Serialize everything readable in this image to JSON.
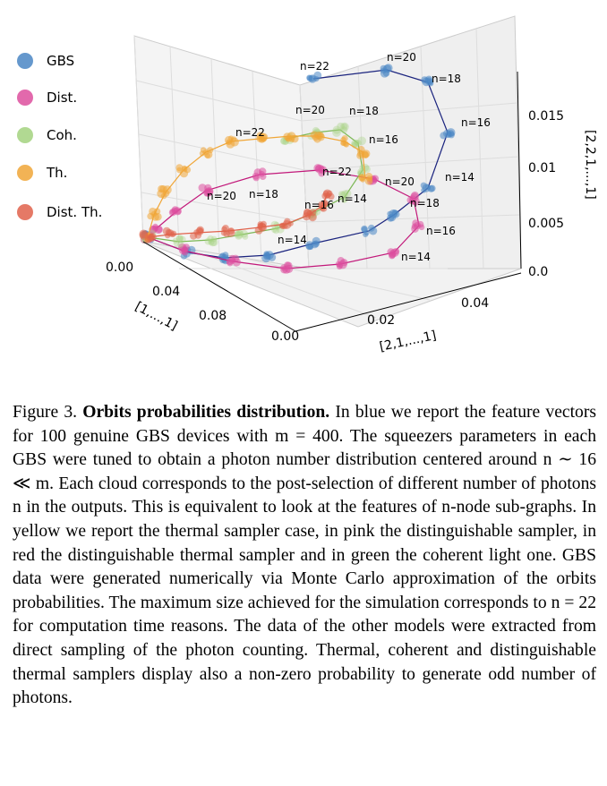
{
  "chart_data": {
    "type": "scatter",
    "title": "",
    "axes": {
      "x": {
        "label": "[1,...,1]",
        "ticks": [
          "0.00",
          "0.04",
          "0.08"
        ]
      },
      "y": {
        "label": "[2,1,...,1]",
        "ticks": [
          "0.00",
          "0.02",
          "0.04"
        ]
      },
      "z": {
        "label": "[2,2,1,...,1]",
        "ticks": [
          "0.0",
          "0.005",
          "0.01",
          "0.015"
        ]
      }
    },
    "legend": {
      "placement": "left",
      "entries": [
        {
          "name": "GBS",
          "color": "#4a86c4"
        },
        {
          "name": "Dist.",
          "color": "#dd4f9e"
        },
        {
          "name": "Coh.",
          "color": "#a3d27f"
        },
        {
          "name": "Th.",
          "color": "#f0a637"
        },
        {
          "name": "Dist. Th.",
          "color": "#e0624b"
        }
      ]
    },
    "series": [
      {
        "name": "GBS",
        "line_color": "#1a237e",
        "point_labels": [
          "n=22",
          "n=20",
          "n=18",
          "n=16",
          "n=14"
        ]
      },
      {
        "name": "Dist.",
        "line_color": "#c2187a",
        "point_labels": [
          "n=22",
          "n=20",
          "n=18",
          "n=16",
          "n=14"
        ]
      },
      {
        "name": "Coh.",
        "line_color": "#7cb855",
        "point_labels": [
          "n=20",
          "n=18",
          "n=16",
          "n=14"
        ]
      },
      {
        "name": "Th.",
        "line_color": "#f0a637",
        "point_labels": [
          "n=22",
          "n=20",
          "n=18",
          "n=16",
          "n=14"
        ]
      },
      {
        "name": "Dist. Th.",
        "line_color": "#e0624b",
        "point_labels": []
      }
    ]
  },
  "caption": {
    "label": "Figure 3.",
    "title": "Orbits probabilities distribution.",
    "body": "In blue we report the feature vectors for 100 genuine GBS devices with m = 400. The squeezers parameters in each GBS were tuned to obtain a photon number distribution centered around n ∼ 16 ≪ m. Each cloud corresponds to the post-selection of different number of photons n in the outputs. This is equivalent to look at the features of n-node sub-graphs. In yellow we report the thermal sampler case, in pink the distinguishable sampler, in red the distinguishable thermal sampler and in green the coherent light one. GBS data were generated numerically via Monte Carlo approximation of the orbits probabilities. The maximum size achieved for the simulation corresponds to n = 22 for computation time reasons. The data of the other models were extracted from direct sampling of the photon counting. Thermal, coherent and distinguishable thermal samplers display also a non-zero probability to generate odd number of photons."
  }
}
